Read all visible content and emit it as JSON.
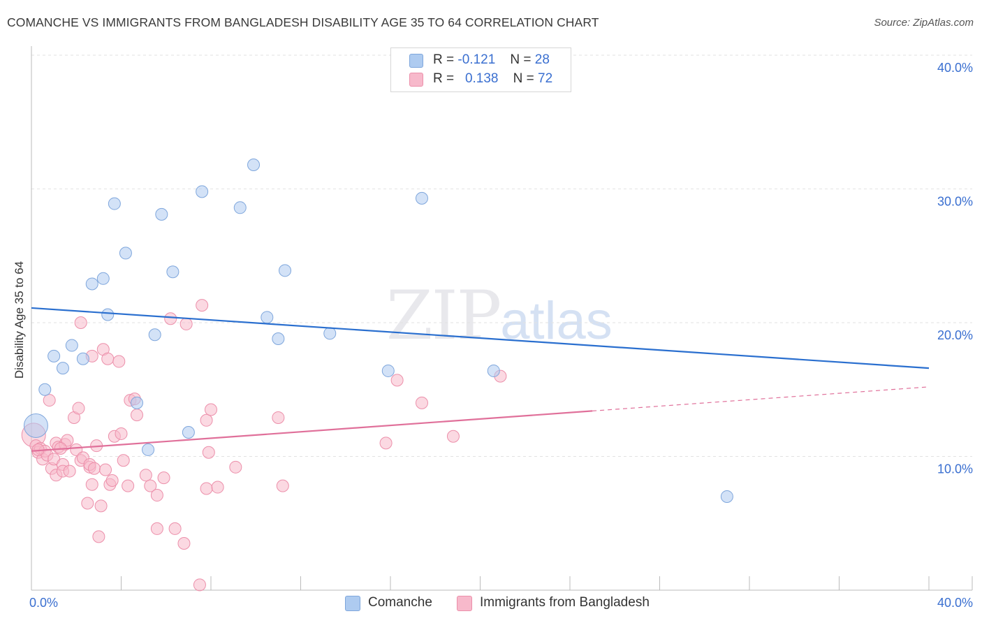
{
  "header": {
    "title": "COMANCHE VS IMMIGRANTS FROM BANGLADESH DISABILITY AGE 35 TO 64 CORRELATION CHART",
    "source": "Source: ZipAtlas.com"
  },
  "watermark": {
    "zip": "ZIP",
    "atlas": "atlas"
  },
  "legend": {
    "rows": [
      {
        "r_label": "R =",
        "r_value": "-0.121",
        "n_label": "N =",
        "n_value": "28"
      },
      {
        "r_label": "R =",
        "r_value": "0.138",
        "n_label": "N =",
        "n_value": "72"
      }
    ]
  },
  "bottom_legend": {
    "series1": "Comanche",
    "series2": "Immigrants from Bangladesh"
  },
  "colors": {
    "blue_fill": "#aecbf0",
    "blue_stroke": "#7ea6dc",
    "blue_line": "#2a6fcf",
    "pink_fill": "#f7b9cb",
    "pink_stroke": "#ec8faa",
    "pink_line": "#e0709a",
    "axis_text": "#3a6fd0",
    "grid": "#e2e2e2"
  },
  "chart_data": {
    "type": "scatter",
    "title": "COMANCHE VS IMMIGRANTS FROM BANGLADESH DISABILITY AGE 35 TO 64 CORRELATION CHART",
    "xlabel": "",
    "ylabel": "Disability Age 35 to 64",
    "xlim": [
      0,
      40
    ],
    "ylim": [
      0,
      40
    ],
    "x_tick_labels": [
      "0.0%",
      "40.0%"
    ],
    "y_tick_labels": [
      "10.0%",
      "20.0%",
      "30.0%",
      "40.0%"
    ],
    "y_ticks": [
      10,
      20,
      30,
      40
    ],
    "grid": true,
    "legend_position": "top-center",
    "series": [
      {
        "name": "Comanche",
        "color": "#aecbf0",
        "R": -0.121,
        "N": 28,
        "trend": {
          "x": [
            0,
            40
          ],
          "y": [
            21.1,
            16.6
          ]
        },
        "points": [
          {
            "x": 0.2,
            "y": 12.3,
            "big": true
          },
          {
            "x": 0.6,
            "y": 15.0
          },
          {
            "x": 1.0,
            "y": 17.5
          },
          {
            "x": 1.4,
            "y": 16.6
          },
          {
            "x": 1.8,
            "y": 18.3
          },
          {
            "x": 2.3,
            "y": 17.3
          },
          {
            "x": 2.7,
            "y": 22.9
          },
          {
            "x": 3.2,
            "y": 23.3
          },
          {
            "x": 3.4,
            "y": 20.6
          },
          {
            "x": 3.7,
            "y": 28.9
          },
          {
            "x": 4.2,
            "y": 25.2
          },
          {
            "x": 4.7,
            "y": 14.0
          },
          {
            "x": 5.2,
            "y": 10.5
          },
          {
            "x": 5.5,
            "y": 19.1
          },
          {
            "x": 5.8,
            "y": 28.1
          },
          {
            "x": 6.3,
            "y": 23.8
          },
          {
            "x": 7.0,
            "y": 11.8
          },
          {
            "x": 7.6,
            "y": 29.8
          },
          {
            "x": 9.3,
            "y": 28.6
          },
          {
            "x": 9.9,
            "y": 31.8
          },
          {
            "x": 10.5,
            "y": 20.4
          },
          {
            "x": 11.0,
            "y": 18.8
          },
          {
            "x": 11.3,
            "y": 23.9
          },
          {
            "x": 13.3,
            "y": 19.2
          },
          {
            "x": 15.9,
            "y": 16.4
          },
          {
            "x": 17.4,
            "y": 29.3
          },
          {
            "x": 20.6,
            "y": 16.4
          },
          {
            "x": 31.0,
            "y": 7.0
          }
        ]
      },
      {
        "name": "Immigrants from Bangladesh",
        "color": "#f7b9cb",
        "R": 0.138,
        "N": 72,
        "trend": {
          "x": [
            0,
            25
          ],
          "y": [
            10.4,
            13.4
          ]
        },
        "trend_dashed": {
          "x": [
            25,
            40
          ],
          "y": [
            13.4,
            15.2
          ]
        },
        "points": [
          {
            "x": 0.1,
            "y": 11.6,
            "big": true
          },
          {
            "x": 0.2,
            "y": 10.8
          },
          {
            "x": 0.3,
            "y": 10.3
          },
          {
            "x": 0.4,
            "y": 10.6
          },
          {
            "x": 0.5,
            "y": 9.8
          },
          {
            "x": 0.6,
            "y": 10.4
          },
          {
            "x": 0.7,
            "y": 10.1
          },
          {
            "x": 0.8,
            "y": 14.2
          },
          {
            "x": 0.9,
            "y": 9.1
          },
          {
            "x": 1.0,
            "y": 9.8
          },
          {
            "x": 1.1,
            "y": 11.0
          },
          {
            "x": 1.1,
            "y": 8.6
          },
          {
            "x": 1.2,
            "y": 10.7
          },
          {
            "x": 1.4,
            "y": 9.4
          },
          {
            "x": 1.4,
            "y": 8.9
          },
          {
            "x": 1.5,
            "y": 10.9
          },
          {
            "x": 1.6,
            "y": 11.2
          },
          {
            "x": 1.7,
            "y": 8.9
          },
          {
            "x": 1.9,
            "y": 12.9
          },
          {
            "x": 2.0,
            "y": 10.5
          },
          {
            "x": 2.1,
            "y": 13.6
          },
          {
            "x": 2.2,
            "y": 9.7
          },
          {
            "x": 2.2,
            "y": 20.0
          },
          {
            "x": 2.3,
            "y": 9.9
          },
          {
            "x": 2.5,
            "y": 6.5
          },
          {
            "x": 2.6,
            "y": 9.2
          },
          {
            "x": 2.6,
            "y": 9.4
          },
          {
            "x": 2.7,
            "y": 7.9
          },
          {
            "x": 2.7,
            "y": 17.5
          },
          {
            "x": 2.8,
            "y": 9.1
          },
          {
            "x": 2.9,
            "y": 10.8
          },
          {
            "x": 3.0,
            "y": 4.0
          },
          {
            "x": 3.1,
            "y": 6.3
          },
          {
            "x": 3.2,
            "y": 18.0
          },
          {
            "x": 3.3,
            "y": 9.0
          },
          {
            "x": 3.4,
            "y": 17.3
          },
          {
            "x": 3.5,
            "y": 7.9
          },
          {
            "x": 3.6,
            "y": 8.2
          },
          {
            "x": 3.7,
            "y": 11.5
          },
          {
            "x": 3.9,
            "y": 17.1
          },
          {
            "x": 4.0,
            "y": 11.7
          },
          {
            "x": 4.1,
            "y": 9.7
          },
          {
            "x": 4.3,
            "y": 7.8
          },
          {
            "x": 4.4,
            "y": 14.2
          },
          {
            "x": 4.6,
            "y": 14.3
          },
          {
            "x": 4.7,
            "y": 13.1
          },
          {
            "x": 5.1,
            "y": 8.6
          },
          {
            "x": 5.3,
            "y": 7.8
          },
          {
            "x": 5.6,
            "y": 7.1
          },
          {
            "x": 5.6,
            "y": 4.6
          },
          {
            "x": 5.9,
            "y": 8.4
          },
          {
            "x": 6.2,
            "y": 20.3
          },
          {
            "x": 6.4,
            "y": 4.6
          },
          {
            "x": 6.8,
            "y": 3.5
          },
          {
            "x": 6.9,
            "y": 19.9
          },
          {
            "x": 7.5,
            "y": 0.4
          },
          {
            "x": 7.6,
            "y": 21.3
          },
          {
            "x": 7.8,
            "y": 7.6
          },
          {
            "x": 7.8,
            "y": 12.7
          },
          {
            "x": 7.9,
            "y": 10.3
          },
          {
            "x": 8.0,
            "y": 13.5
          },
          {
            "x": 8.3,
            "y": 7.7
          },
          {
            "x": 9.1,
            "y": 9.2
          },
          {
            "x": 11.0,
            "y": 12.9
          },
          {
            "x": 11.2,
            "y": 7.8
          },
          {
            "x": 15.8,
            "y": 11.0
          },
          {
            "x": 16.3,
            "y": 15.7
          },
          {
            "x": 17.4,
            "y": 14.0
          },
          {
            "x": 18.8,
            "y": 11.5
          },
          {
            "x": 20.9,
            "y": 16.0
          },
          {
            "x": 0.3,
            "y": 10.5
          },
          {
            "x": 1.3,
            "y": 10.6
          }
        ]
      }
    ]
  }
}
